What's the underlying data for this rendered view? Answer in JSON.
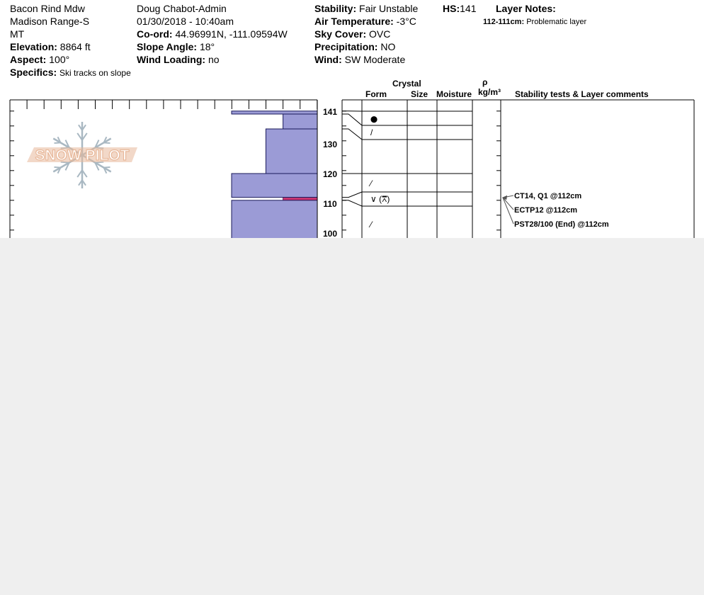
{
  "header": {
    "location": "Bacon Rind Mdw",
    "range": "Madison Range-S",
    "state": "MT",
    "elevation_label": "Elevation:",
    "elevation_value": "8864 ft",
    "aspect_label": "Aspect:",
    "aspect_value": "100°",
    "specifics_label": "Specifics:",
    "specifics_value": "Ski tracks on slope",
    "observer": "Doug Chabot-Admin",
    "datetime": "01/30/2018 - 10:40am",
    "coord_label": "Co-ord:",
    "coord_value": "44.96991N, -111.09594W",
    "slope_label": "Slope Angle:",
    "slope_value": "18°",
    "wind_loading_label": "Wind Loading:",
    "wind_loading_value": "no",
    "stability_label": "Stability:",
    "stability_value": "Fair Unstable",
    "air_temp_label": "Air Temperature:",
    "air_temp_value": "-3°C",
    "sky_label": "Sky Cover:",
    "sky_value": "OVC",
    "precip_label": "Precipitation:",
    "precip_value": "NO",
    "wind_label": "Wind:",
    "wind_value": "SW Moderate",
    "hs_label": "HS:",
    "hs_value": "141",
    "layer_notes_label": "Layer Notes:",
    "layer_note_depth": "112-111cm:",
    "layer_note_text": "Problematic layer"
  },
  "logo": {
    "text": "SNOW PILOT"
  },
  "columns": {
    "crystal": "Crystal",
    "form": "Form",
    "size": "Size",
    "moisture": "Moisture",
    "rho": "ρ",
    "density_unit": "kg/m³",
    "comments": "Stability tests & Layer comments"
  },
  "chart_data": {
    "type": "bar",
    "title": "",
    "orientation": "horizontal",
    "ylabel": "",
    "y_ticks": [
      141,
      130,
      120,
      110,
      100
    ],
    "visible_y_range": [
      96,
      141
    ],
    "hardness_layers": [
      {
        "top": 141,
        "bottom": 140,
        "hardness": 1.0
      },
      {
        "top": 140,
        "bottom": 135,
        "hardness": 0.4
      },
      {
        "top": 135,
        "bottom": 120,
        "hardness": 0.6
      },
      {
        "top": 120,
        "bottom": 112,
        "hardness": 1.0
      },
      {
        "top": 112,
        "bottom": 111,
        "hardness": 0.4,
        "highlight": true
      },
      {
        "top": 111,
        "bottom": 96,
        "hardness": 1.0
      }
    ],
    "layer_boundaries": [
      141,
      140,
      135,
      120,
      112,
      111
    ],
    "grain_forms": [
      {
        "depth": 138,
        "symbol": "⬤",
        "kind": "rounded"
      },
      {
        "depth": 134,
        "symbol": "/",
        "kind": "decomposed"
      },
      {
        "depth": 116,
        "symbol": "⁄",
        "kind": "decomposed-dashed"
      },
      {
        "depth": 111.5,
        "symbol": "∨ (⩞)",
        "kind": "surface-hoar"
      },
      {
        "depth": 103,
        "symbol": "⁄",
        "kind": "decomposed-dashed"
      }
    ],
    "stability_tests": [
      {
        "label": "CT14, Q1 @112cm",
        "depth": 112
      },
      {
        "label": "ECTP12 @112cm",
        "depth": 112
      },
      {
        "label": "PST28/100 (End) @112cm",
        "depth": 112
      }
    ],
    "colors": {
      "hardness_fill": "#9b9bd6",
      "weak_layer": "#c8326e",
      "logo": "#e8b89a",
      "snowflake": "#a9b8c2"
    }
  }
}
